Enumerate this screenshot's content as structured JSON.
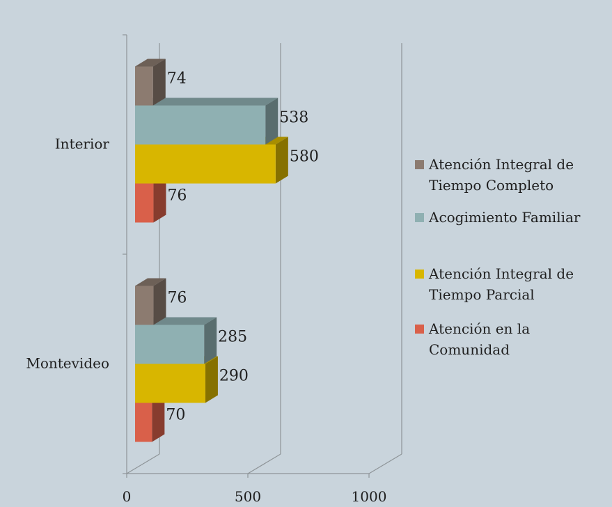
{
  "chart_data": {
    "type": "bar",
    "orientation": "horizontal",
    "style": "3d-clustered",
    "categories": [
      "Interior",
      "Montevideo"
    ],
    "series": [
      {
        "name": "Atención Integral de Tiempo Completo",
        "color": "#8c7b70",
        "values": [
          74,
          76
        ]
      },
      {
        "name": "Acogimiento Familiar",
        "color": "#8fb0b2",
        "values": [
          538,
          285
        ]
      },
      {
        "name": "Atención Integral de Tiempo Parcial",
        "color": "#d8b600",
        "values": [
          580,
          290
        ]
      },
      {
        "name": "Atención en la Comunidad",
        "color": "#d9604a",
        "values": [
          76,
          70
        ]
      }
    ],
    "xlim": [
      0,
      1000
    ],
    "xticks": [
      "0",
      "500",
      "1000"
    ],
    "grid": true,
    "legend": "right"
  }
}
